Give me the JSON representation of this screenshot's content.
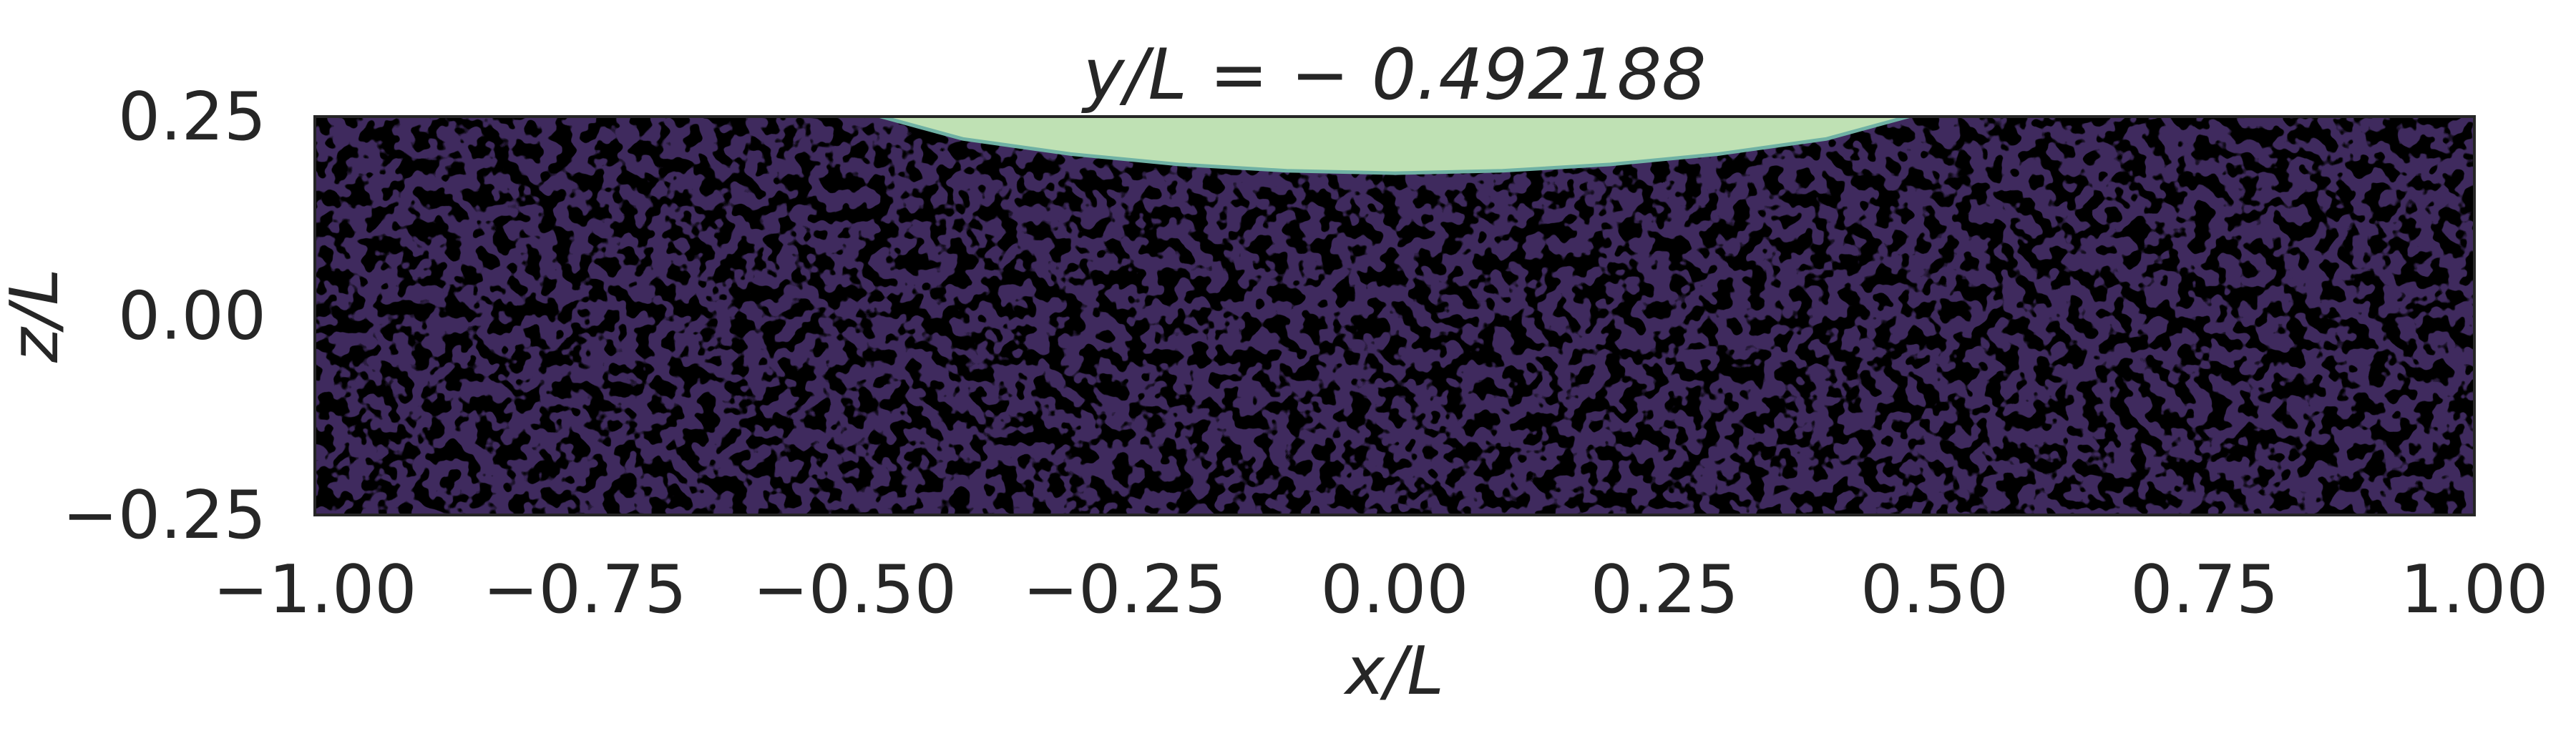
{
  "chart_data": {
    "type": "heatmap",
    "title": "y/L = − 0.492188",
    "xlabel": "x/L",
    "ylabel": "z/L",
    "xlim": [
      -1.0,
      1.0
    ],
    "ylim": [
      -0.25,
      0.25
    ],
    "x_ticks": [
      "−1.00",
      "−0.75",
      "−0.50",
      "−0.25",
      "0.00",
      "0.25",
      "0.50",
      "0.75",
      "1.00"
    ],
    "x_tick_values": [
      -1.0,
      -0.75,
      -0.5,
      -0.25,
      0.0,
      0.25,
      0.5,
      0.75,
      1.0
    ],
    "y_ticks": [
      "0.25",
      "0.00",
      "−0.25"
    ],
    "y_tick_values": [
      0.25,
      0.0,
      -0.25
    ],
    "grid": false,
    "regions": [
      {
        "name": "background-field",
        "color": "#3f2a5e",
        "speckle_color": "#000000",
        "description_extent": {
          "x": [
            -1.0,
            1.0
          ],
          "z": [
            -0.25,
            0.25
          ]
        }
      },
      {
        "name": "cap-region",
        "color": "#bfe1b4",
        "edge_color": "#6fb1a4",
        "boundary": {
          "x": [
            -0.5,
            -0.4,
            -0.3,
            -0.2,
            -0.1,
            0.0,
            0.1,
            0.2,
            0.3,
            0.4,
            0.5
          ],
          "z": [
            0.25,
            0.222,
            0.203,
            0.19,
            0.182,
            0.179,
            0.182,
            0.19,
            0.203,
            0.222,
            0.25
          ]
        }
      }
    ]
  }
}
